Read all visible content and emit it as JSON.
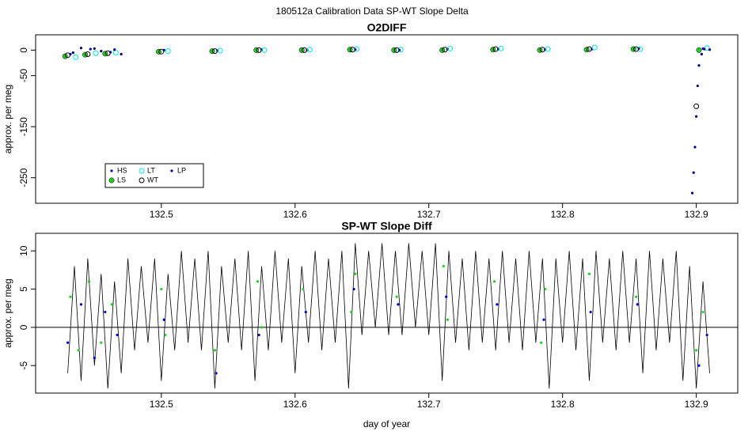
{
  "title": "180512a   Calibration Data SP-WT Slope Delta",
  "chart_data": [
    {
      "type": "scatter",
      "title": "O2DIFF",
      "ylabel": "approx. per meg",
      "xlim": [
        132.406,
        132.931
      ],
      "xticks": [
        132.5,
        132.6,
        132.7,
        132.8,
        132.9
      ],
      "ylim": [
        -300,
        30
      ],
      "yticks": [
        -250,
        -150,
        -50,
        0
      ],
      "legend": "bottomleft",
      "series": [
        {
          "name": "HS",
          "color": "#0000cc",
          "marker": "dot",
          "x": [
            132.432,
            132.447,
            132.462,
            132.502,
            132.542,
            132.575,
            132.609,
            132.645,
            132.678,
            132.714,
            132.752,
            132.787,
            132.822,
            132.857,
            132.905
          ],
          "values": [
            -8,
            2,
            -4,
            0,
            -1,
            1,
            0,
            1,
            0,
            2,
            2,
            1,
            2,
            3,
            3
          ]
        },
        {
          "name": "LS",
          "color": "#22cc22",
          "marker": "disc",
          "x": [
            132.428,
            132.443,
            132.458,
            132.498,
            132.538,
            132.571,
            132.605,
            132.641,
            132.674,
            132.71,
            132.748,
            132.783,
            132.818,
            132.853,
            132.902
          ],
          "values": [
            -12,
            -9,
            -7,
            -3,
            -2,
            0,
            0,
            1,
            0,
            0,
            1,
            0,
            1,
            2,
            0
          ]
        },
        {
          "name": "LT",
          "color": "#00e5ee",
          "marker": "ring",
          "x": [
            132.436,
            132.451,
            132.466,
            132.505,
            132.544,
            132.577,
            132.611,
            132.646,
            132.679,
            132.716,
            132.754,
            132.789,
            132.824,
            132.858,
            132.908
          ],
          "values": [
            -14,
            -6,
            -5,
            -2,
            -1,
            0,
            1,
            2,
            1,
            3,
            3,
            2,
            5,
            2,
            4
          ]
        },
        {
          "name": "WT",
          "color": "#000000",
          "marker": "ring",
          "x": [
            132.43,
            132.445,
            132.46,
            132.5,
            132.54,
            132.573,
            132.607,
            132.643,
            132.676,
            132.712,
            132.75,
            132.785,
            132.82,
            132.855,
            132.9
          ],
          "values": [
            -10,
            -8,
            -6,
            -3,
            -2,
            0,
            0,
            1,
            0,
            1,
            2,
            1,
            2,
            2,
            -110
          ]
        },
        {
          "name": "LP",
          "color": "#000080",
          "marker": "dot",
          "x": [
            132.434,
            132.44,
            132.45,
            132.455,
            132.465,
            132.47,
            132.897,
            132.898,
            132.899,
            132.9,
            132.901,
            132.902,
            132.904,
            132.906,
            132.91
          ],
          "values": [
            -5,
            4,
            3,
            -2,
            1,
            -8,
            -280,
            -240,
            -190,
            -130,
            -70,
            -30,
            -8,
            2,
            1
          ]
        }
      ]
    },
    {
      "type": "line",
      "title": "SP-WT Slope Diff",
      "ylabel": "approx. per meg",
      "xlabel": "day of year",
      "xlim": [
        132.406,
        132.931
      ],
      "xticks": [
        132.5,
        132.6,
        132.7,
        132.8,
        132.9
      ],
      "ylim": [
        -8.6,
        12.3
      ],
      "yticks": [
        -5,
        0,
        5,
        10
      ],
      "reference_line": 0,
      "series": [
        {
          "color": "#000000",
          "marker": "line",
          "x": [
            132.43,
            132.435,
            132.44,
            132.445,
            132.45,
            132.455,
            132.46,
            132.465,
            132.47,
            132.475,
            132.48,
            132.485,
            132.49,
            132.495,
            132.5,
            132.505,
            132.51,
            132.515,
            132.52,
            132.525,
            132.53,
            132.535,
            132.54,
            132.545,
            132.55,
            132.555,
            132.56,
            132.565,
            132.57,
            132.575,
            132.58,
            132.585,
            132.59,
            132.595,
            132.6,
            132.605,
            132.61,
            132.615,
            132.62,
            132.625,
            132.63,
            132.635,
            132.64,
            132.645,
            132.65,
            132.655,
            132.66,
            132.665,
            132.67,
            132.675,
            132.68,
            132.685,
            132.69,
            132.695,
            132.7,
            132.705,
            132.71,
            132.715,
            132.72,
            132.725,
            132.73,
            132.735,
            132.74,
            132.745,
            132.75,
            132.755,
            132.76,
            132.765,
            132.77,
            132.775,
            132.78,
            132.785,
            132.79,
            132.795,
            132.8,
            132.805,
            132.81,
            132.815,
            132.82,
            132.825,
            132.83,
            132.835,
            132.84,
            132.845,
            132.85,
            132.855,
            132.86,
            132.865,
            132.87,
            132.875,
            132.88,
            132.885,
            132.89,
            132.895,
            132.9,
            132.905,
            132.91
          ],
          "values": [
            -6,
            8,
            -7,
            9,
            -5,
            7,
            -8,
            6,
            -6,
            9,
            -3,
            8,
            -2,
            9,
            -7,
            7,
            -3,
            10,
            -2,
            9,
            -3,
            10,
            -8,
            8,
            -2,
            9,
            -3,
            10,
            -7,
            8,
            -3,
            10,
            -2,
            9,
            -6,
            8,
            -2,
            10,
            -3,
            9,
            -2,
            10,
            -8,
            11,
            -1,
            10,
            0,
            11,
            -1,
            10,
            -1,
            11,
            0,
            10,
            -1,
            11,
            -7,
            10,
            -2,
            9,
            -3,
            10,
            -2,
            9,
            -3,
            10,
            -2,
            9,
            -3,
            10,
            -2,
            9,
            -8,
            9,
            -2,
            10,
            -3,
            9,
            -7,
            10,
            -2,
            9,
            -3,
            10,
            -2,
            9,
            -6,
            10,
            -3,
            9,
            -2,
            10,
            -7,
            8,
            -8,
            6,
            -6
          ]
        },
        {
          "color": "#22cc22",
          "marker": "dot",
          "x": [
            132.432,
            132.438,
            132.446,
            132.455,
            132.463,
            132.5,
            132.503,
            132.54,
            132.572,
            132.575,
            132.606,
            132.642,
            132.645,
            132.676,
            132.711,
            132.714,
            132.749,
            132.784,
            132.787,
            132.82,
            132.855,
            132.9,
            132.905
          ],
          "values": [
            4,
            -3,
            6,
            -2,
            3,
            5,
            -1,
            -3,
            6,
            0,
            5,
            2,
            7,
            4,
            8,
            1,
            6,
            -2,
            5,
            7,
            4,
            -3,
            2
          ]
        },
        {
          "color": "#0000cc",
          "marker": "dot",
          "x": [
            132.43,
            132.44,
            132.45,
            132.458,
            132.467,
            132.502,
            132.541,
            132.573,
            132.608,
            132.644,
            132.677,
            132.713,
            132.751,
            132.786,
            132.821,
            132.856,
            132.902,
            132.908
          ],
          "values": [
            -2,
            3,
            -4,
            2,
            -1,
            1,
            -6,
            -1,
            2,
            5,
            3,
            4,
            3,
            1,
            2,
            3,
            -5,
            -1
          ]
        }
      ]
    }
  ]
}
